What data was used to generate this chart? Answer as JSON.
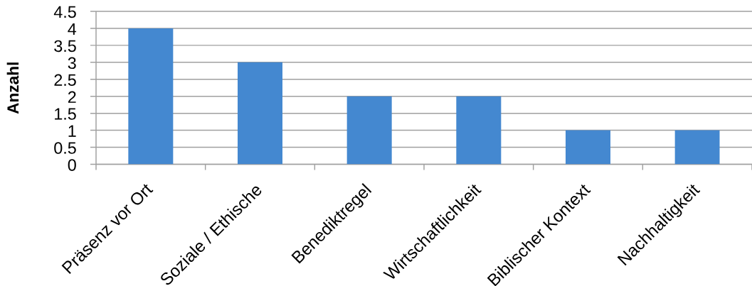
{
  "chart_data": {
    "type": "bar",
    "ylabel": "Anzahl",
    "categories": [
      "Präsenz vor Ort",
      "Soziale / Ethische",
      "Benediktregel",
      "Wirtschaftlichkeit",
      "Biblischer Kontext",
      "Nachhaltigkeit"
    ],
    "values": [
      4,
      3,
      2,
      2,
      1,
      1
    ],
    "color": "#4488d0",
    "ylim": [
      0,
      4.5
    ],
    "yticks": [
      0,
      0.5,
      1,
      1.5,
      2,
      2.5,
      3,
      3.5,
      4,
      4.5
    ],
    "grid": "y"
  }
}
